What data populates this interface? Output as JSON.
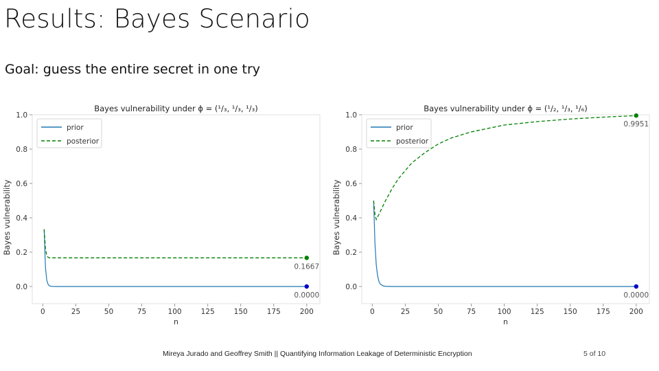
{
  "slide": {
    "title": "Results: Bayes Scenario",
    "goal": "Goal: guess the entire secret in one try",
    "footer": "Mireya Jurado and Geoffrey Smith || Quantifying Information Leakage of Deterministic Encryption",
    "page": "5 of 10"
  },
  "chart_data": [
    {
      "type": "line",
      "title": "Bayes vulnerability under ϕ = (¹/₃, ¹/₃, ¹/₃)",
      "xlabel": "n",
      "ylabel": "Bayes vulnerability",
      "xlim": [
        -8,
        210
      ],
      "ylim": [
        -0.1,
        1.0
      ],
      "xticks": [
        0,
        25,
        50,
        75,
        100,
        125,
        150,
        175,
        200
      ],
      "yticks": [
        0.0,
        0.2,
        0.4,
        0.6,
        0.8,
        1.0
      ],
      "ytick_labels": [
        "0.0",
        "0.2",
        "0.4",
        "0.6",
        "0.8",
        "1.0"
      ],
      "grid": false,
      "legend_position": "top-left",
      "series": [
        {
          "name": "prior",
          "color": "#1f77b4",
          "dash": "solid",
          "x": [
            1,
            2,
            3,
            4,
            5,
            6,
            8,
            10,
            15,
            25,
            50,
            100,
            150,
            200
          ],
          "values": [
            0.3333,
            0.1111,
            0.037,
            0.0123,
            0.0041,
            0.0014,
            0.0002,
            0.0,
            0.0,
            0.0,
            0.0,
            0.0,
            0.0,
            0.0
          ]
        },
        {
          "name": "posterior",
          "color": "#008000",
          "dash": "dashed",
          "x": [
            1,
            2,
            3,
            4,
            5,
            6,
            8,
            10,
            15,
            25,
            50,
            100,
            150,
            200
          ],
          "values": [
            0.3333,
            0.22,
            0.18,
            0.17,
            0.1667,
            0.1667,
            0.1667,
            0.1667,
            0.1667,
            0.1667,
            0.1667,
            0.1667,
            0.1667,
            0.1667
          ]
        }
      ],
      "annotations": [
        {
          "text": "0.1667",
          "x": 200,
          "y": 0.1667,
          "color": "#008000"
        },
        {
          "text": "0.0000",
          "x": 200,
          "y": 0.0,
          "color": "#0000cc"
        }
      ]
    },
    {
      "type": "line",
      "title": "Bayes vulnerability under ϕ = (¹/₂, ¹/₃, ¹/₆)",
      "xlabel": "n",
      "ylabel": "Bayes vulnerability",
      "xlim": [
        -8,
        210
      ],
      "ylim": [
        -0.1,
        1.0
      ],
      "xticks": [
        0,
        25,
        50,
        75,
        100,
        125,
        150,
        175,
        200
      ],
      "yticks": [
        0.0,
        0.2,
        0.4,
        0.6,
        0.8,
        1.0
      ],
      "ytick_labels": [
        "0.0",
        "0.2",
        "0.4",
        "0.6",
        "0.8",
        "1.0"
      ],
      "grid": false,
      "legend_position": "top-left",
      "series": [
        {
          "name": "prior",
          "color": "#1f77b4",
          "dash": "solid",
          "x": [
            1,
            2,
            3,
            4,
            5,
            6,
            8,
            10,
            15,
            25,
            50,
            100,
            150,
            200
          ],
          "values": [
            0.5,
            0.25,
            0.125,
            0.0625,
            0.03,
            0.015,
            0.004,
            0.001,
            0.0,
            0.0,
            0.0,
            0.0,
            0.0,
            0.0
          ]
        },
        {
          "name": "posterior",
          "color": "#008000",
          "dash": "dashed",
          "x": [
            1,
            2,
            3,
            5,
            10,
            15,
            20,
            30,
            40,
            50,
            60,
            75,
            100,
            125,
            150,
            175,
            200
          ],
          "values": [
            0.5,
            0.42,
            0.39,
            0.42,
            0.5,
            0.57,
            0.63,
            0.72,
            0.78,
            0.83,
            0.865,
            0.9,
            0.94,
            0.96,
            0.975,
            0.986,
            0.9951
          ]
        }
      ],
      "annotations": [
        {
          "text": "0.9951",
          "x": 200,
          "y": 0.9951,
          "color": "#008000"
        },
        {
          "text": "0.0000",
          "x": 200,
          "y": 0.0,
          "color": "#0000cc"
        }
      ]
    }
  ]
}
